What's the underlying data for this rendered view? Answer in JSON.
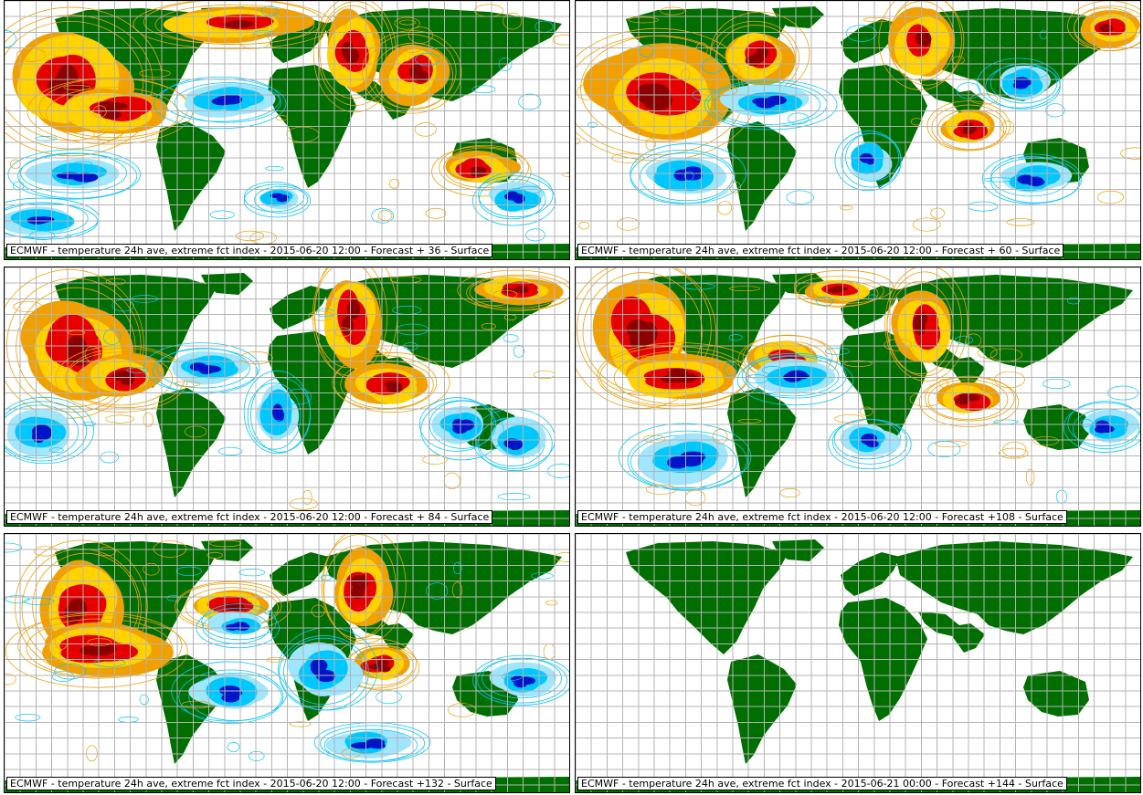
{
  "panels": [
    {
      "caption": "ECMWF - temperature 24h ave, extreme fct index - 2015-06-20 12:00 - Forecast + 36 - Surface",
      "has_field": true
    },
    {
      "caption": "ECMWF - temperature 24h ave, extreme fct index - 2015-06-20 12:00 - Forecast + 60 - Surface",
      "has_field": true
    },
    {
      "caption": "ECMWF - temperature 24h ave, extreme fct index - 2015-06-20 12:00 - Forecast + 84 - Surface",
      "has_field": true
    },
    {
      "caption": "ECMWF - temperature 24h ave, extreme fct index - 2015-06-20 12:00 - Forecast +108 - Surface",
      "has_field": true
    },
    {
      "caption": "ECMWF - temperature 24h ave, extreme fct index - 2015-06-20 12:00 - Forecast +132 - Surface",
      "has_field": true
    },
    {
      "caption": "ECMWF - temperature 24h ave, extreme fct index - 2015-06-21 00:00 - Forecast +144 - Surface",
      "has_field": false
    }
  ],
  "colors": {
    "land": "#006e00",
    "grid": "#b4b4b4",
    "warm_strong": "#8b0000",
    "warm": "#e60000",
    "warm_mid": "#ffd200",
    "warm_weak": "#f0a000",
    "cold_weak": "#a0e6ff",
    "cold": "#00c8ff",
    "cold_strong": "#0014c8"
  }
}
